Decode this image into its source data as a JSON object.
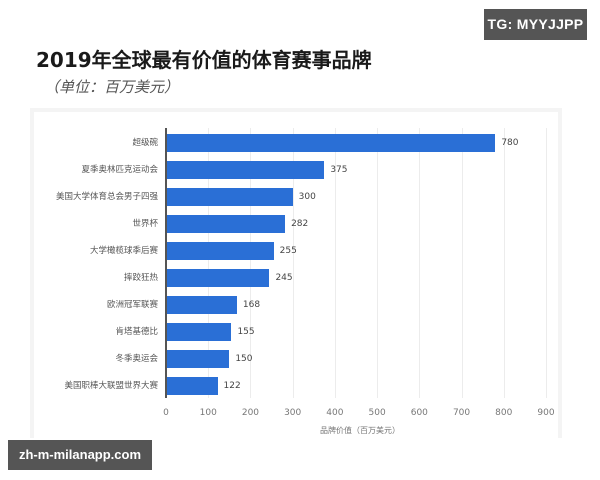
{
  "watermarks": {
    "top_right": "TG: MYYJJPP",
    "bottom_left": "zh-m-milanapp.com"
  },
  "header": {
    "title": "2019年全球最有价值的体育赛事品牌",
    "subtitle": "（单位：百万美元）"
  },
  "colors": {
    "bar": "#2a6fd6",
    "axis": "#555555",
    "grid": "#ececec"
  },
  "chart_data": {
    "type": "bar",
    "orientation": "horizontal",
    "title": "2019年全球最有价值的体育赛事品牌",
    "subtitle": "（单位：百万美元）",
    "categories": [
      "超级碗",
      "夏季奥林匹克运动会",
      "美国大学体育总会男子四强",
      "世界杯",
      "大学橄榄球季后赛",
      "摔跤狂热",
      "欧洲冠军联赛",
      "肯塔基德比",
      "冬季奥运会",
      "美国职棒大联盟世界大赛"
    ],
    "values": [
      780,
      375,
      300,
      282,
      255,
      245,
      168,
      155,
      150,
      122
    ],
    "value_labels": [
      "780",
      "375",
      "300",
      "282",
      "255",
      "245",
      "168",
      "155",
      "150",
      "122"
    ],
    "xlabel": "品牌价值（百万美元）",
    "ylabel": "",
    "xlim": [
      0,
      900
    ],
    "xticks": [
      "0",
      "100",
      "200",
      "300",
      "400",
      "500",
      "600",
      "700",
      "800",
      "900"
    ],
    "grid": true,
    "legend": null
  }
}
